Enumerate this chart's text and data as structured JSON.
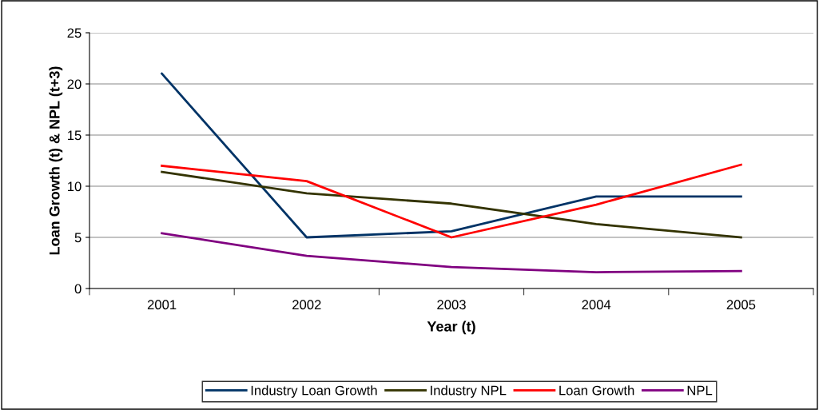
{
  "chart_data": {
    "type": "line",
    "xlabel": "Year (t)",
    "ylabel": "Loan Growth (t) & NPL (t+3)",
    "categories": [
      "2001",
      "2002",
      "2003",
      "2004",
      "2005"
    ],
    "series": [
      {
        "name": "Industry Loan Growth",
        "color": "#003366",
        "values": [
          21.0,
          5.0,
          5.6,
          9.0,
          9.0
        ]
      },
      {
        "name": "Industry NPL",
        "color": "#333300",
        "values": [
          11.4,
          9.3,
          8.3,
          6.3,
          5.0
        ]
      },
      {
        "name": "Loan Growth",
        "color": "#ff0000",
        "values": [
          12.0,
          10.5,
          5.0,
          8.2,
          12.1
        ]
      },
      {
        "name": "NPL",
        "color": "#800080",
        "values": [
          5.4,
          3.2,
          2.1,
          1.6,
          1.7
        ]
      }
    ],
    "ylim": [
      0,
      25
    ],
    "yticks": [
      0,
      5,
      10,
      15,
      20,
      25
    ],
    "grid": "y",
    "legend": "bottom",
    "marker": "none",
    "line_style": "solid"
  }
}
